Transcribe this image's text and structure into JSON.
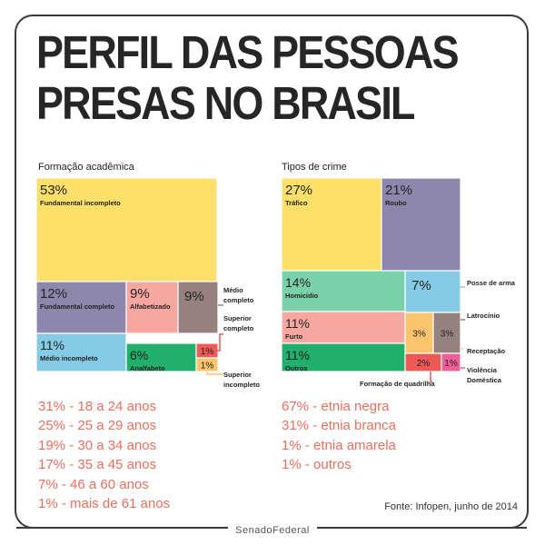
{
  "title": {
    "line1": "PERFIL DAS PESSOAS",
    "line2": "PRESAS NO BRASIL"
  },
  "chart_data": [
    {
      "type": "treemap",
      "title": "Formação acadêmica",
      "items": [
        {
          "pct": "53%",
          "label": "Fundamental incompleto",
          "value": 53,
          "color": "#fde06a"
        },
        {
          "pct": "12%",
          "label": "Fundamental completo",
          "value": 12,
          "color": "#8d87ad"
        },
        {
          "pct": "9%",
          "label": "Alfabetizado",
          "value": 9,
          "color": "#f6a8a0"
        },
        {
          "pct": "9%",
          "label": "Médio completo",
          "value": 9,
          "color": "#95827e"
        },
        {
          "pct": "11%",
          "label": "Médio incompleto",
          "value": 11,
          "color": "#86cbe6"
        },
        {
          "pct": "6%",
          "label": "Analfabeto",
          "value": 6,
          "color": "#22ae6c"
        },
        {
          "pct": "1%",
          "label": "Superior completo",
          "value": 1,
          "color": "#ec5a57"
        },
        {
          "pct": "1%",
          "label": "Superior incompleto",
          "value": 1,
          "color": "#fcc46c"
        }
      ]
    },
    {
      "type": "treemap",
      "title": "Tipos de crime",
      "items": [
        {
          "pct": "27%",
          "label": "Tráfico",
          "value": 27,
          "color": "#fde06a"
        },
        {
          "pct": "21%",
          "label": "Roubo",
          "value": 21,
          "color": "#8d87ad"
        },
        {
          "pct": "14%",
          "label": "Homicídio",
          "value": 14,
          "color": "#79d2a9"
        },
        {
          "pct": "7%",
          "label": "Posse de arma",
          "value": 7,
          "color": "#86cbe6"
        },
        {
          "pct": "11%",
          "label": "Furto",
          "value": 11,
          "color": "#f6a8a0"
        },
        {
          "pct": "3%",
          "label": "Receptação",
          "value": 3,
          "color": "#fcc46c"
        },
        {
          "pct": "3%",
          "label": "Latrocínio",
          "value": 3,
          "color": "#95827e"
        },
        {
          "pct": "11%",
          "label": "Outros",
          "value": 11,
          "color": "#22ae6c"
        },
        {
          "pct": "2%",
          "label": "Formação de quadrilha",
          "value": 2,
          "color": "#ec5a57"
        },
        {
          "pct": "1%",
          "label": "Violência Doméstica",
          "value": 1,
          "color": "#ee5f97"
        }
      ]
    }
  ],
  "age_groups": [
    "31% - 18 a 24 anos",
    "25% - 25 a 29 anos",
    "19% - 30 a 34 anos",
    "17% - 35 a 45 anos",
    "7% - 46 a 60 anos",
    "1% - mais de 61 anos"
  ],
  "ethnicity": [
    "67% - etnia negra",
    "31% - etnia branca",
    "1% -  etnia amarela",
    "1% - outros"
  ],
  "source": "Fonte: Infopen, junho de 2014",
  "footer": "SenadoFederal"
}
